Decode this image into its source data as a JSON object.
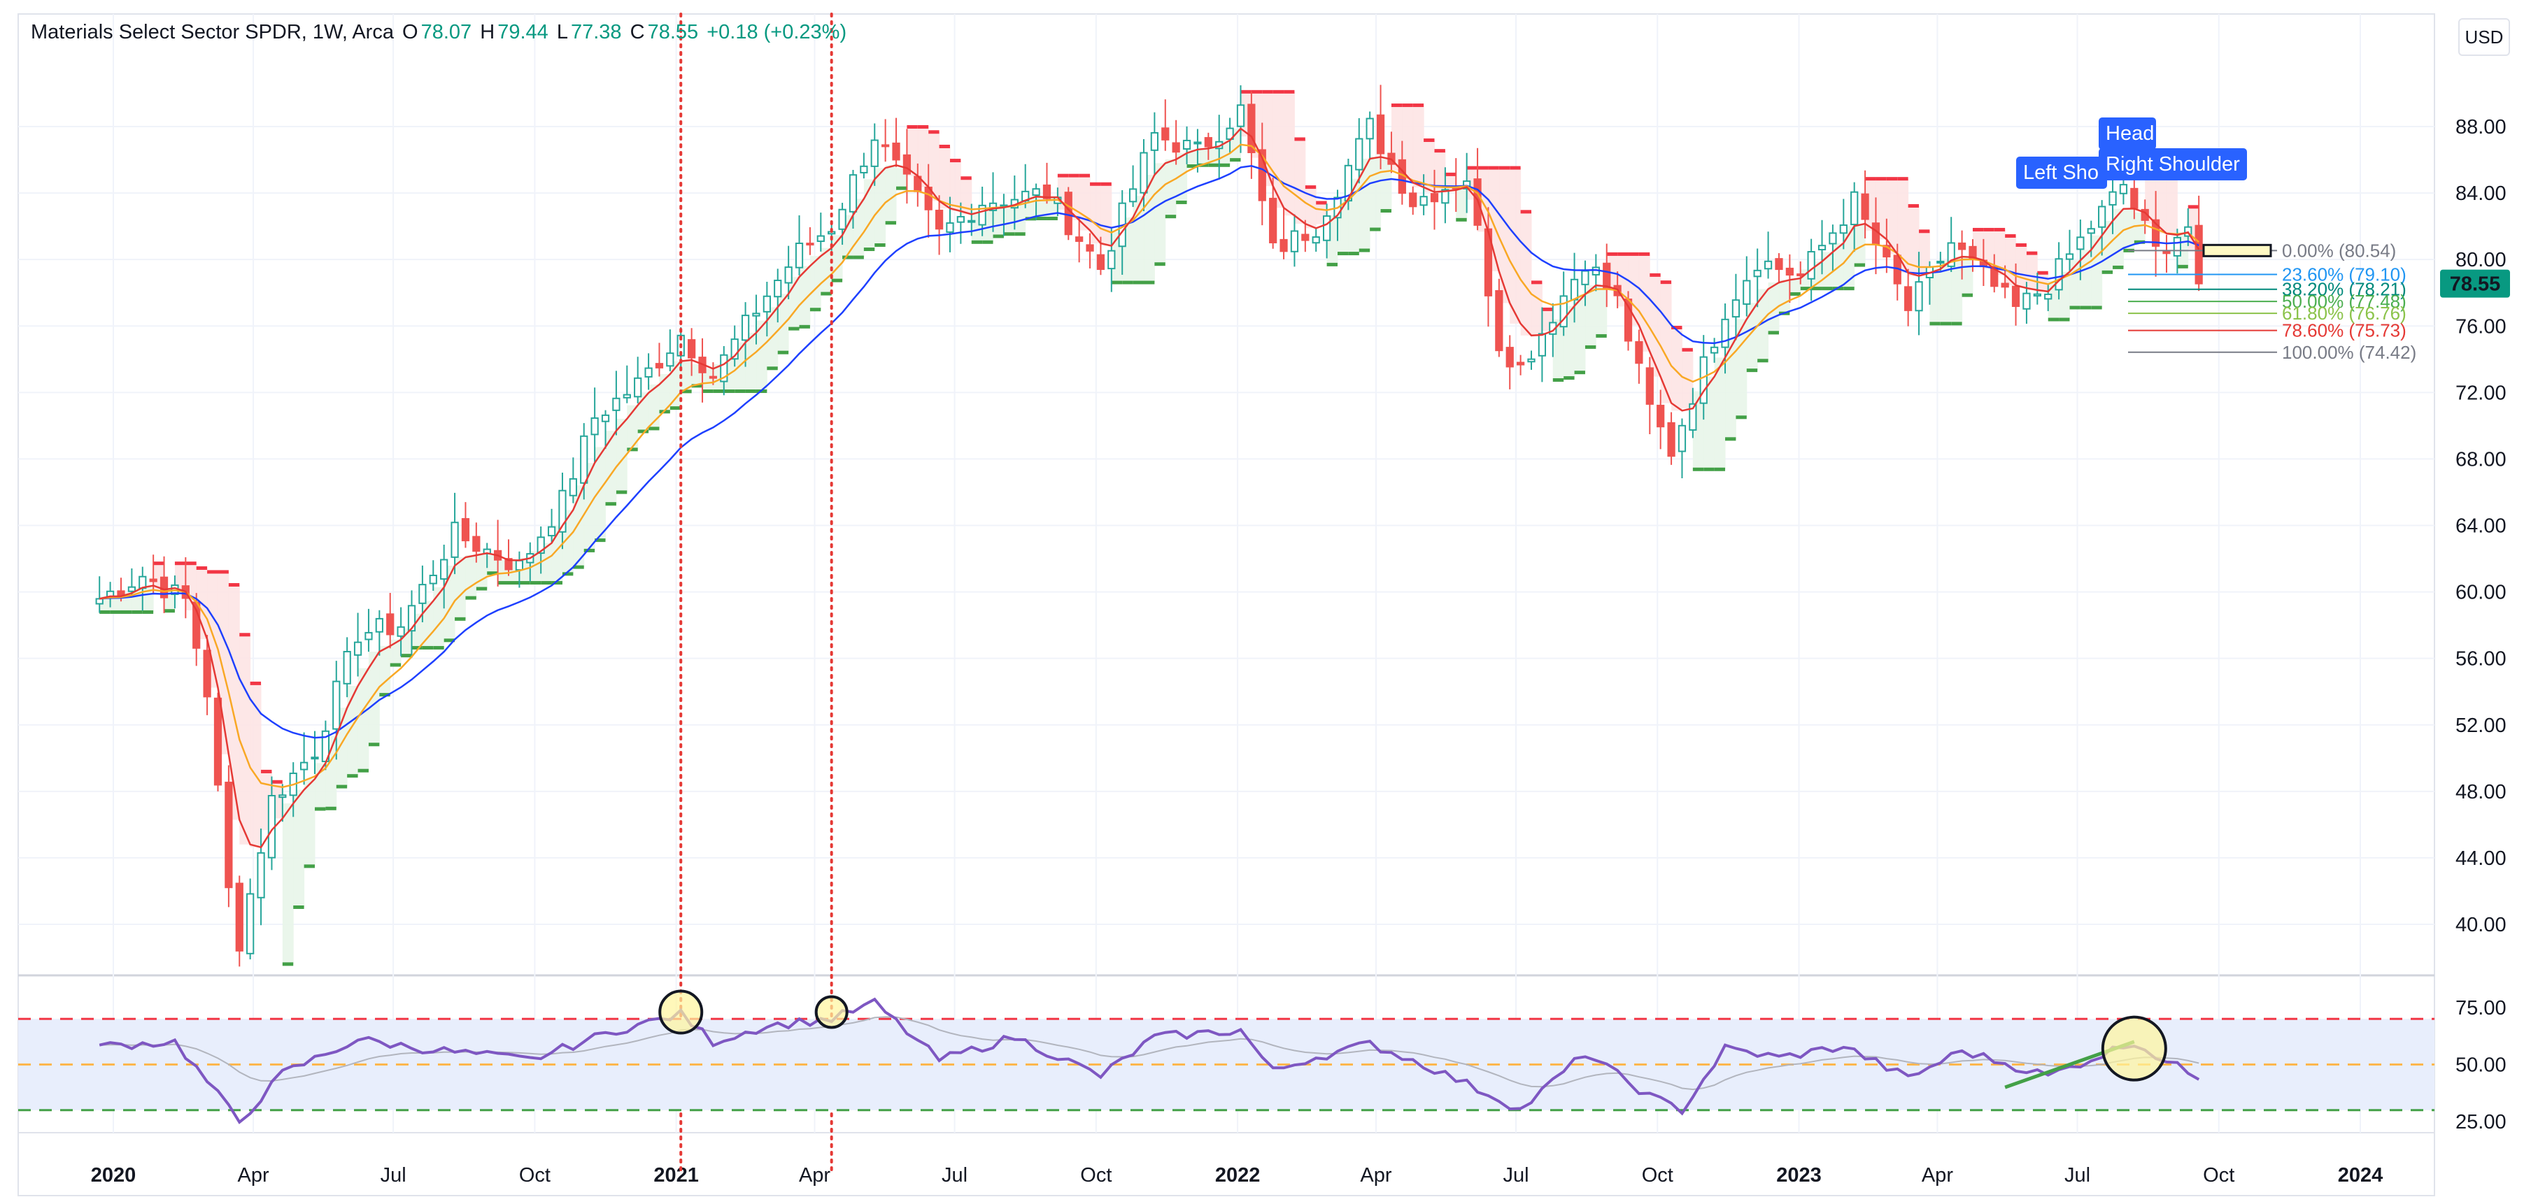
{
  "header": {
    "symbol": "Materials Select Sector SPDR, 1W, Arca",
    "o_label": "O",
    "o": "78.07",
    "h_label": "H",
    "h": "79.44",
    "l_label": "L",
    "l": "77.38",
    "c_label": "C",
    "c": "78.55",
    "change": "+0.18 (+0.23%)"
  },
  "currency_button": "USD",
  "colors": {
    "up": "#26a69a",
    "down": "#ef5350",
    "stop_up": "#43a047",
    "stop_down": "#f23645",
    "ema_fast": "#e53935",
    "ema_mid": "#f9a825",
    "ema_slow": "#1e40ff",
    "rsi": "#7e57c2",
    "rsi_band": "#e8eefc",
    "pattern_label": "#2962ff",
    "last_price": "#089981"
  },
  "chart_data": {
    "type": "candlestick",
    "title": "Materials Select Sector SPDR, 1W, Arca",
    "price_axis": {
      "ticks": [
        "40.00",
        "44.00",
        "48.00",
        "52.00",
        "56.00",
        "60.00",
        "64.00",
        "68.00",
        "72.00",
        "76.00",
        "80.00",
        "84.00",
        "88.00"
      ],
      "range": [
        36.5,
        91.5
      ]
    },
    "time_axis": {
      "labels": [
        "2020",
        "Apr",
        "Jul",
        "Oct",
        "2021",
        "Apr",
        "Jul",
        "Oct",
        "2022",
        "Apr",
        "Jul",
        "Oct",
        "2023",
        "Apr",
        "Jul",
        "Oct",
        "2024"
      ]
    },
    "last_price": "78.55",
    "price_anchors": [
      [
        "2019-12-23",
        59.6
      ],
      [
        "2020-01-20",
        61.0
      ],
      [
        "2020-02-17",
        59.5
      ],
      [
        "2020-03-02",
        54.0
      ],
      [
        "2020-03-16",
        42.0
      ],
      [
        "2020-03-23",
        39.0
      ],
      [
        "2020-04-13",
        47.5
      ],
      [
        "2020-05-11",
        50.5
      ],
      [
        "2020-06-08",
        57.5
      ],
      [
        "2020-07-06",
        58.0
      ],
      [
        "2020-08-10",
        63.5
      ],
      [
        "2020-09-21",
        61.5
      ],
      [
        "2020-10-19",
        65.5
      ],
      [
        "2020-11-09",
        70.5
      ],
      [
        "2020-12-07",
        72.5
      ],
      [
        "2021-01-04",
        75.5
      ],
      [
        "2021-01-25",
        73.0
      ],
      [
        "2021-02-22",
        77.0
      ],
      [
        "2021-03-22",
        80.5
      ],
      [
        "2021-04-12",
        82.0
      ],
      [
        "2021-05-10",
        87.5
      ],
      [
        "2021-06-21",
        81.5
      ],
      [
        "2021-07-19",
        83.5
      ],
      [
        "2021-08-30",
        84.0
      ],
      [
        "2021-10-04",
        79.5
      ],
      [
        "2021-11-08",
        87.5
      ],
      [
        "2021-12-06",
        86.5
      ],
      [
        "2022-01-03",
        89.0
      ],
      [
        "2022-01-24",
        80.5
      ],
      [
        "2022-02-21",
        82.0
      ],
      [
        "2022-03-28",
        88.0
      ],
      [
        "2022-04-25",
        83.5
      ],
      [
        "2022-05-30",
        85.0
      ],
      [
        "2022-06-20",
        75.0
      ],
      [
        "2022-07-04",
        73.5
      ],
      [
        "2022-08-15",
        80.0
      ],
      [
        "2022-09-05",
        77.5
      ],
      [
        "2022-09-26",
        71.0
      ],
      [
        "2022-10-10",
        68.5
      ],
      [
        "2022-11-14",
        77.0
      ],
      [
        "2022-12-05",
        80.0
      ],
      [
        "2023-01-02",
        79.0
      ],
      [
        "2023-02-06",
        83.5
      ],
      [
        "2023-03-13",
        77.0
      ],
      [
        "2023-04-10",
        81.0
      ],
      [
        "2023-05-22",
        77.0
      ],
      [
        "2023-06-12",
        78.5
      ],
      [
        "2023-07-10",
        82.0
      ],
      [
        "2023-07-31",
        84.5
      ],
      [
        "2023-08-21",
        80.5
      ],
      [
        "2023-09-11",
        82.0
      ],
      [
        "2023-09-18",
        78.55
      ]
    ],
    "emas": [
      "fast",
      "mid",
      "slow"
    ],
    "fibonacci": [
      {
        "level": "0.00%",
        "price": "80.54",
        "value": 80.54,
        "color": "#787b86"
      },
      {
        "level": "23.60%",
        "price": "79.10",
        "value": 79.1,
        "color": "#2196f3"
      },
      {
        "level": "38.20%",
        "price": "78.21",
        "value": 78.21,
        "color": "#00897b"
      },
      {
        "level": "50.00%",
        "price": "77.48",
        "value": 77.48,
        "color": "#4caf50"
      },
      {
        "level": "61.80%",
        "price": "76.76",
        "value": 76.76,
        "color": "#8bc34a"
      },
      {
        "level": "78.60%",
        "price": "75.73",
        "value": 75.73,
        "color": "#e53935"
      },
      {
        "level": "100.00%",
        "price": "74.42",
        "value": 74.42,
        "color": "#787b86"
      }
    ],
    "pattern_labels": {
      "left": "Left Sho",
      "head": "Head",
      "right": "Right Shoulder"
    },
    "markers": [
      "2021-01-04",
      "2021-04-12"
    ],
    "rsi": {
      "ticks": [
        "25.00",
        "50.00",
        "75.00"
      ],
      "range": [
        20,
        80
      ],
      "overbought": 70,
      "mid": 50,
      "oversold": 30,
      "anchors": [
        [
          "2019-12-23",
          58
        ],
        [
          "2020-02-10",
          60
        ],
        [
          "2020-03-23",
          25
        ],
        [
          "2020-04-20",
          46
        ],
        [
          "2020-06-08",
          61
        ],
        [
          "2020-07-20",
          57
        ],
        [
          "2020-09-28",
          52
        ],
        [
          "2020-11-23",
          65
        ],
        [
          "2021-01-04",
          72
        ],
        [
          "2021-01-25",
          60
        ],
        [
          "2021-03-01",
          67
        ],
        [
          "2021-04-12",
          70
        ],
        [
          "2021-05-10",
          77
        ],
        [
          "2021-06-21",
          52
        ],
        [
          "2021-08-09",
          62
        ],
        [
          "2021-10-04",
          45
        ],
        [
          "2021-11-08",
          62
        ],
        [
          "2022-01-03",
          65
        ],
        [
          "2022-01-24",
          47
        ],
        [
          "2022-02-14",
          52
        ],
        [
          "2022-03-28",
          59
        ],
        [
          "2022-05-02",
          50
        ],
        [
          "2022-06-20",
          35
        ],
        [
          "2022-07-04",
          30
        ],
        [
          "2022-08-15",
          55
        ],
        [
          "2022-09-26",
          36
        ],
        [
          "2022-10-17",
          30
        ],
        [
          "2022-11-14",
          57
        ],
        [
          "2022-12-19",
          53
        ],
        [
          "2023-01-30",
          58
        ],
        [
          "2023-03-13",
          44
        ],
        [
          "2023-04-17",
          56
        ],
        [
          "2023-06-12",
          45
        ],
        [
          "2023-08-07",
          60
        ],
        [
          "2023-08-28",
          51
        ],
        [
          "2023-09-18",
          45
        ]
      ]
    }
  }
}
